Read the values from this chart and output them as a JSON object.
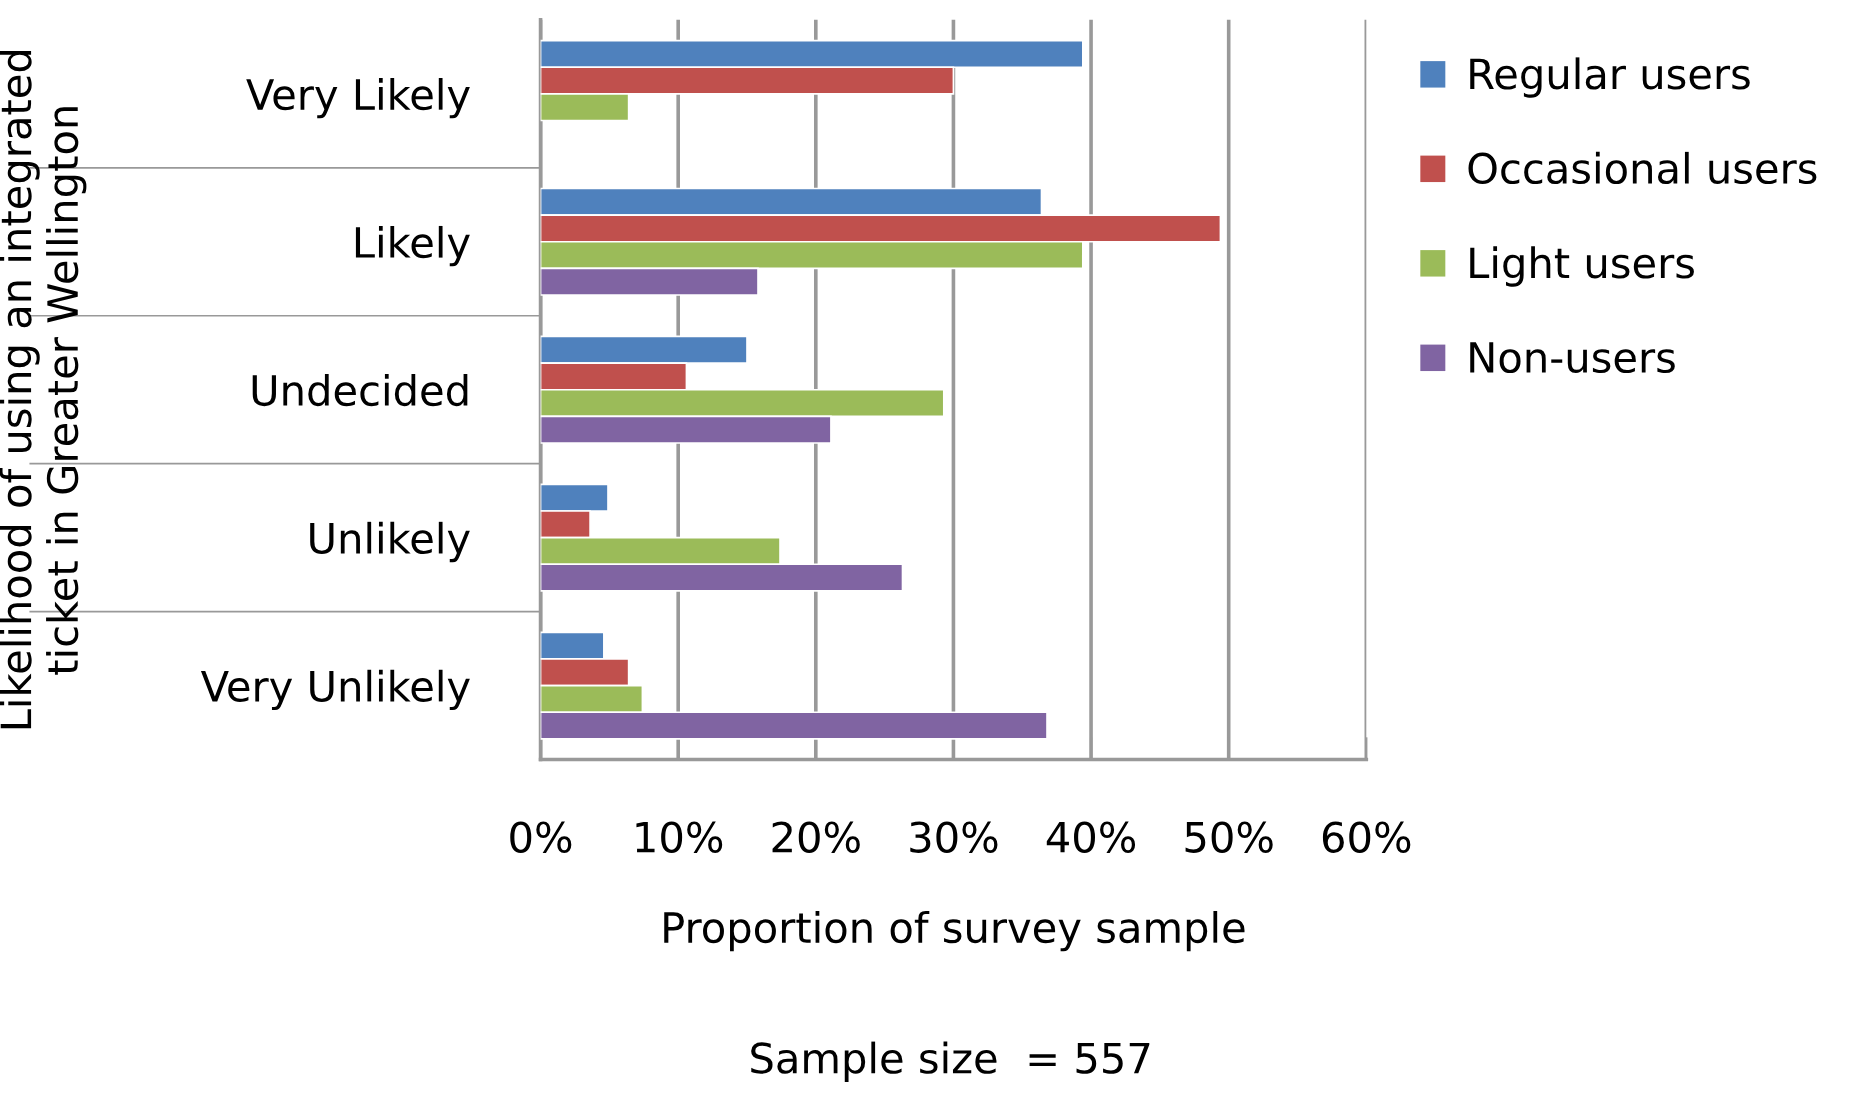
{
  "chart_data": {
    "type": "bar",
    "orientation": "horizontal",
    "categories": [
      "Very Likely",
      "Likely",
      "Undecided",
      "Unlikely",
      "Very Unlikely"
    ],
    "series": [
      {
        "name": "Regular users",
        "color": "#4f81bd",
        "values": [
          39.4,
          36.4,
          15.0,
          4.9,
          4.6
        ]
      },
      {
        "name": "Occasional users",
        "color": "#c0504d",
        "values": [
          30.0,
          49.4,
          10.6,
          3.6,
          6.4
        ]
      },
      {
        "name": "Light users",
        "color": "#9bbb59",
        "values": [
          6.4,
          39.4,
          29.3,
          17.4,
          7.4
        ]
      },
      {
        "name": "Non-users",
        "color": "#8064a2",
        "values": [
          null,
          15.8,
          21.1,
          26.3,
          36.8
        ]
      }
    ],
    "xlim": [
      0,
      60
    ],
    "xticks": [
      {
        "value": 0,
        "label": "0%"
      },
      {
        "value": 10,
        "label": "10%"
      },
      {
        "value": 20,
        "label": "20%"
      },
      {
        "value": 30,
        "label": "30%"
      },
      {
        "value": 40,
        "label": "40%"
      },
      {
        "value": 50,
        "label": "50%"
      },
      {
        "value": 60,
        "label": "60%"
      }
    ],
    "xlabel": "Proportion of survey sample",
    "ylabel": "Likelihood of using an integrated\nticket in Greater Wellington",
    "annotations": [
      "Sample size  = 557"
    ],
    "grid": "x",
    "legend": "top right"
  }
}
